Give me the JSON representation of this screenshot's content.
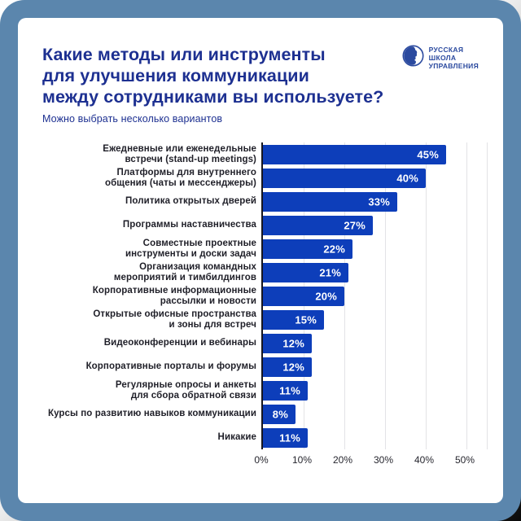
{
  "colors": {
    "frame": "#5b86ad",
    "card": "#ffffff",
    "title": "#1d3091",
    "subtitle": "#1d3091",
    "bar": "#0d3eba",
    "bar_value_text": "#ffffff",
    "label_text": "#1f1f28",
    "axis_text": "#26262e",
    "gridline": "#e3e3e6",
    "axis_line": "#17171f",
    "logo": "#2b4a9f"
  },
  "header": {
    "title": "Какие методы или инструменты для улучшения коммуникации между сотрудниками вы используете?",
    "title_lines": [
      "Какие методы или инструменты",
      "для улучшения коммуникации",
      "между сотрудниками вы используете?"
    ],
    "subtitle": "Можно выбрать несколько вариантов"
  },
  "logo": {
    "name": "Русская школа управления",
    "lines": [
      "РУССКАЯ",
      "ШКОЛА",
      "УПРАВЛЕНИЯ"
    ]
  },
  "chart_data": {
    "type": "bar",
    "orientation": "horizontal",
    "title": "Какие методы или инструменты для улучшения коммуникации между сотрудниками вы используете?",
    "subtitle": "Можно выбрать несколько вариантов",
    "unit": "%",
    "categories": [
      "Ежедневные или еженедельные встречи (stand-up meetings)",
      "Платформы для внутреннего общения (чаты и мессенджеры)",
      "Политика открытых дверей",
      "Программы наставничества",
      "Совместные проектные инструменты и доски задач",
      "Организация командных мероприятий и тимбилдингов",
      "Корпоративные информационные рассылки и новости",
      "Открытые офисные пространства и зоны для встреч",
      "Видеоконференции и вебинары",
      "Корпоративные порталы и форумы",
      "Регулярные опросы и анкеты для сбора обратной связи",
      "Курсы по развитию навыков коммуникации",
      "Никакие"
    ],
    "label_lines": [
      [
        "Ежедневные или еженедельные",
        "встречи (stand-up meetings)"
      ],
      [
        "Платформы для внутреннего",
        "общения (чаты и мессенджеры)"
      ],
      [
        "Политика открытых дверей"
      ],
      [
        "Программы наставничества"
      ],
      [
        "Совместные проектные",
        "инструменты и доски задач"
      ],
      [
        "Организация командных",
        "мероприятий и тимбилдингов"
      ],
      [
        "Корпоративные информационные",
        "рассылки и новости"
      ],
      [
        "Открытые офисные пространства",
        "и зоны для встреч"
      ],
      [
        "Видеоконференции и вебинары"
      ],
      [
        "Корпоративные порталы и форумы"
      ],
      [
        "Регулярные опросы и анкеты",
        "для сбора обратной связи"
      ],
      [
        "Курсы по развитию навыков коммуникации"
      ],
      [
        "Никакие"
      ]
    ],
    "values": [
      45,
      40,
      33,
      27,
      22,
      21,
      20,
      15,
      12,
      12,
      11,
      8,
      11
    ],
    "x_ticks": [
      "0%",
      "10%",
      "20%",
      "30%",
      "40%",
      "50%"
    ],
    "xlim": [
      0,
      55
    ],
    "grid": "vertical",
    "legend": "none"
  }
}
